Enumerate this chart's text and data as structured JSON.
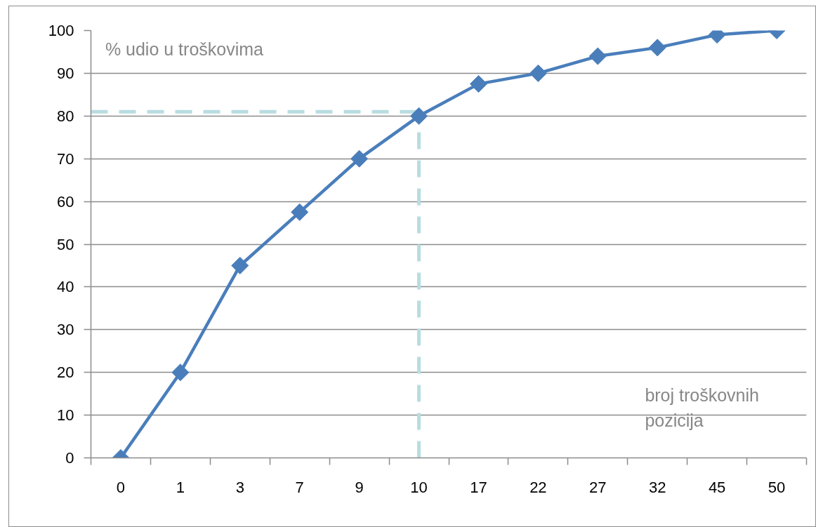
{
  "chart_data": {
    "type": "line",
    "xlabel": "broj troškovnih pozicija",
    "ylabel": "% udio u troškovima",
    "categories": [
      "0",
      "1",
      "3",
      "7",
      "9",
      "10",
      "17",
      "22",
      "27",
      "32",
      "45",
      "50"
    ],
    "series": [
      {
        "color": "#4a7ebb",
        "values": [
          0,
          20,
          45,
          57.5,
          70,
          80,
          87.5,
          90,
          94,
          96,
          99,
          100
        ]
      }
    ],
    "ylim": [
      0,
      100
    ],
    "yticks": [
      0,
      10,
      20,
      30,
      40,
      50,
      60,
      70,
      80,
      90,
      100
    ],
    "grid": "y",
    "marker": "diamond",
    "line_style": "solid",
    "ref_lines": [
      {
        "axis": "y",
        "value": 81,
        "color": "#b7dde1",
        "line_style": "dashed"
      },
      {
        "axis": "x",
        "value": "10",
        "color": "#b7dde1",
        "line_style": "dashed"
      }
    ]
  }
}
